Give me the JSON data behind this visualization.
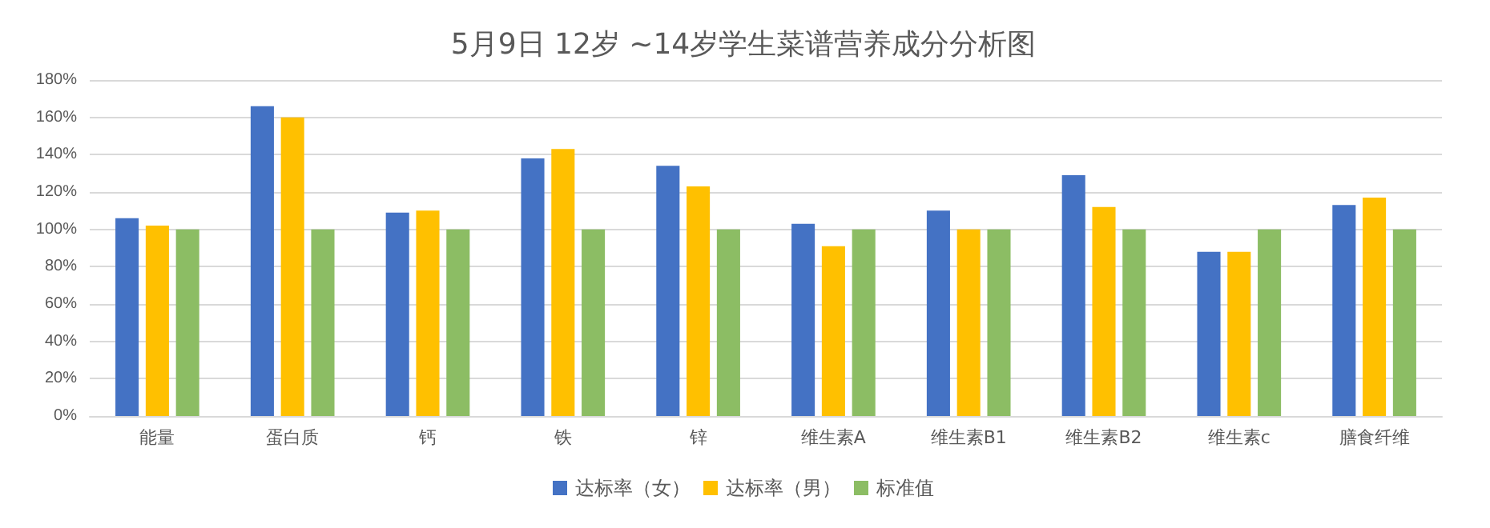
{
  "chart_data": {
    "type": "bar",
    "title": "5月9日 12岁 ~14岁学生菜谱营养成分分析图",
    "categories": [
      "能量",
      "蛋白质",
      "钙",
      "铁",
      "锌",
      "维生素A",
      "维生素B1",
      "维生素B2",
      "维生素c",
      "膳食纤维"
    ],
    "series": [
      {
        "name": "达标率（女）",
        "color": "#4472c4",
        "values": [
          106,
          166,
          109,
          138,
          134,
          103,
          110,
          129,
          88,
          113
        ]
      },
      {
        "name": "达标率（男）",
        "color": "#ffc000",
        "values": [
          102,
          160,
          110,
          143,
          123,
          91,
          100,
          112,
          88,
          117
        ]
      },
      {
        "name": "标准值",
        "color": "#8cbd64",
        "values": [
          100,
          100,
          100,
          100,
          100,
          100,
          100,
          100,
          100,
          100
        ]
      }
    ],
    "ylim": [
      0,
      180
    ],
    "yticks": [
      {
        "value": 0,
        "label": "0%"
      },
      {
        "value": 20,
        "label": "20%"
      },
      {
        "value": 40,
        "label": "40%"
      },
      {
        "value": 60,
        "label": "60%"
      },
      {
        "value": 80,
        "label": "80%"
      },
      {
        "value": 100,
        "label": "100%"
      },
      {
        "value": 120,
        "label": "120%"
      },
      {
        "value": 140,
        "label": "140%"
      },
      {
        "value": 160,
        "label": "160%"
      },
      {
        "value": 180,
        "label": "180%"
      }
    ],
    "grid": "y",
    "legend": "bottom"
  }
}
